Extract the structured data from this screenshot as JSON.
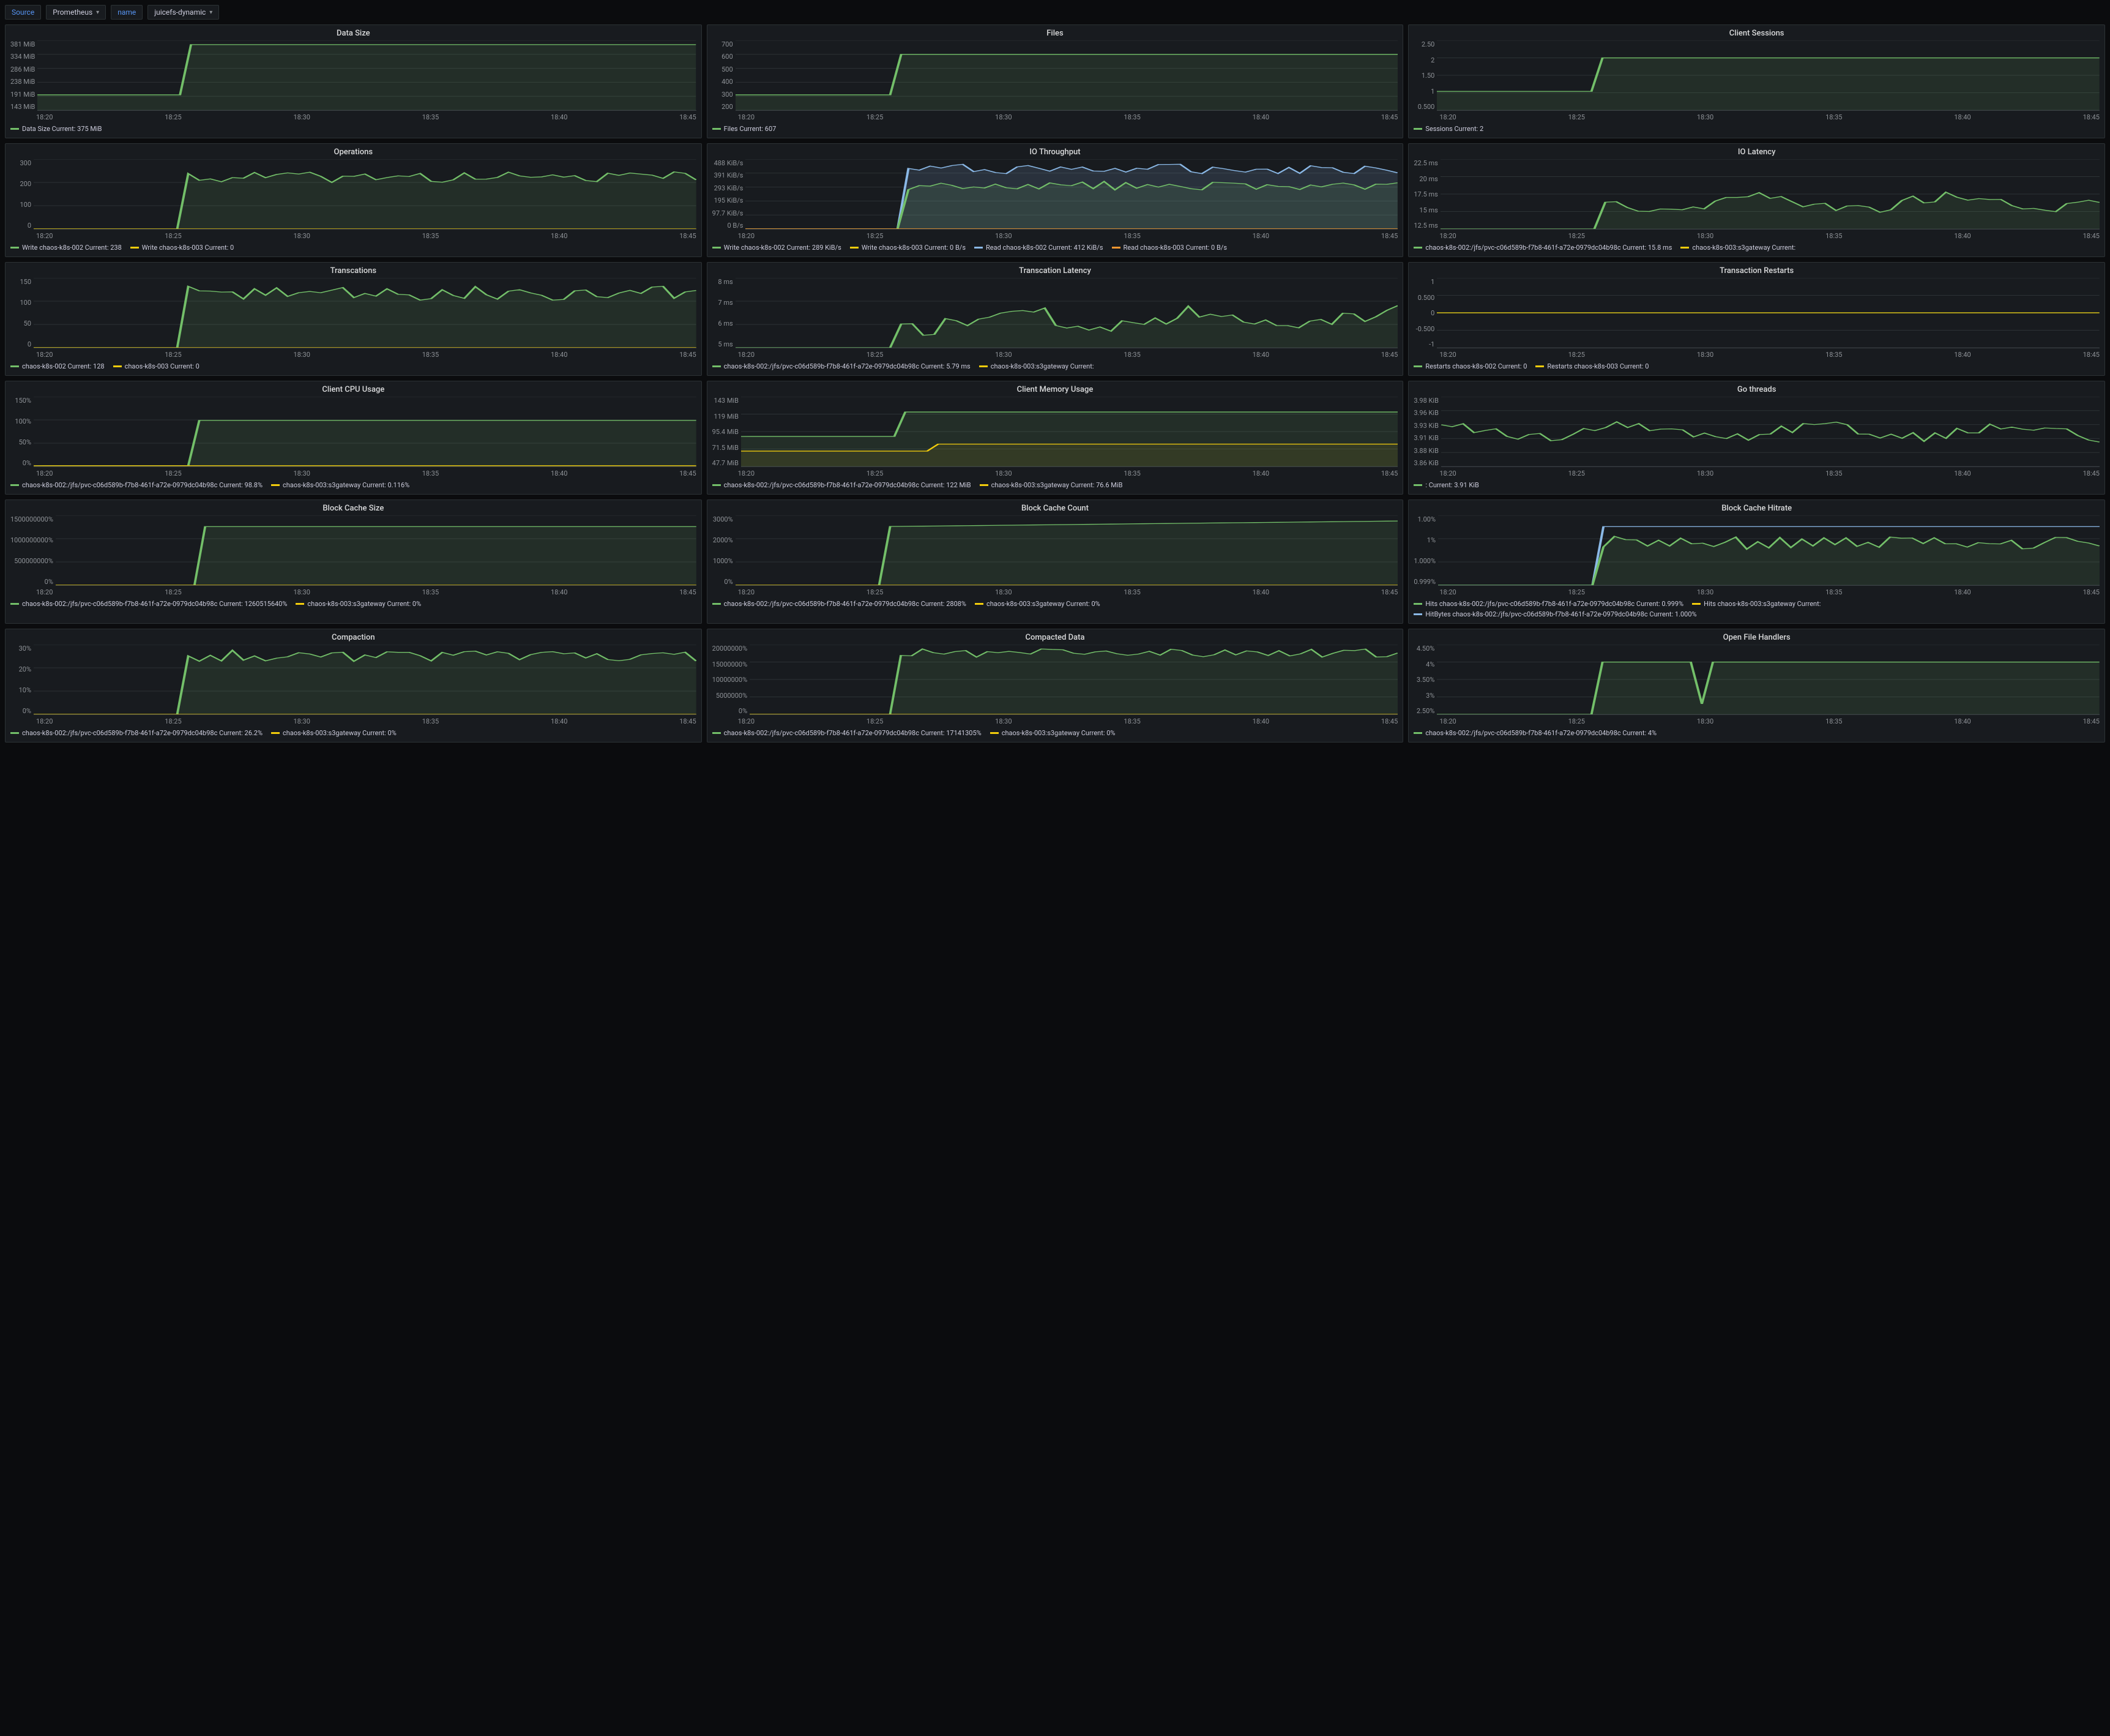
{
  "toolbar": {
    "source_label": "Source",
    "source_value": "Prometheus",
    "name_label": "name",
    "name_value": "juicefs-dynamic"
  },
  "x_ticks": [
    "18:20",
    "18:25",
    "18:30",
    "18:35",
    "18:40",
    "18:45"
  ],
  "colors": {
    "green": "#73bf69",
    "yellow": "#f2cc0c",
    "blue": "#8ab8e6",
    "orange": "#ff9830",
    "fill_green": "rgba(115,191,105,0.12)",
    "fill_blue": "rgba(138,184,230,0.15)",
    "grid": "#2c3235"
  },
  "panels": [
    {
      "title": "Data Size",
      "y_ticks": [
        "381 MiB",
        "334 MiB",
        "286 MiB",
        "238 MiB",
        "191 MiB",
        "143 MiB"
      ],
      "series": [
        {
          "color": "green",
          "fill": true,
          "shape": "step",
          "low": 78,
          "high": 6,
          "step_at": 0.22
        }
      ],
      "legend": [
        {
          "color": "green",
          "label": "Data Size",
          "current": "375 MiB"
        }
      ]
    },
    {
      "title": "Files",
      "y_ticks": [
        "700",
        "600",
        "500",
        "400",
        "300",
        "200"
      ],
      "series": [
        {
          "color": "green",
          "fill": true,
          "shape": "step",
          "low": 78,
          "high": 20,
          "step_at": 0.25
        }
      ],
      "legend": [
        {
          "color": "green",
          "label": "Files",
          "current": "607"
        }
      ]
    },
    {
      "title": "Client Sessions",
      "y_ticks": [
        "2.50",
        "2",
        "1.50",
        "1",
        "0.500"
      ],
      "series": [
        {
          "color": "green",
          "fill": true,
          "shape": "step",
          "low": 73,
          "high": 25,
          "step_at": 0.25
        }
      ],
      "legend": [
        {
          "color": "green",
          "label": "Sessions",
          "current": "2"
        }
      ]
    },
    {
      "title": "Operations",
      "y_ticks": [
        "300",
        "200",
        "100",
        "0"
      ],
      "series": [
        {
          "color": "green",
          "fill": true,
          "shape": "noisy",
          "low": 100,
          "high": 26,
          "step_at": 0.22,
          "noise": 8
        },
        {
          "color": "yellow",
          "fill": false,
          "shape": "flat",
          "level": 100
        }
      ],
      "legend": [
        {
          "color": "green",
          "label": "Write chaos-k8s-002",
          "current": "238"
        },
        {
          "color": "yellow",
          "label": "Write chaos-k8s-003",
          "current": "0"
        }
      ]
    },
    {
      "title": "IO Throughput",
      "y_ticks": [
        "488 KiB/s",
        "391 KiB/s",
        "293 KiB/s",
        "195 KiB/s",
        "97.7 KiB/s",
        "0 B/s"
      ],
      "series": [
        {
          "color": "blue",
          "fill": true,
          "shape": "noisy",
          "low": 100,
          "high": 14,
          "step_at": 0.25,
          "noise": 7
        },
        {
          "color": "green",
          "fill": true,
          "shape": "noisy",
          "low": 100,
          "high": 38,
          "step_at": 0.25,
          "noise": 6
        },
        {
          "color": "yellow",
          "fill": false,
          "shape": "flat",
          "level": 100
        },
        {
          "color": "orange",
          "fill": false,
          "shape": "flat",
          "level": 100
        }
      ],
      "legend": [
        {
          "color": "green",
          "label": "Write chaos-k8s-002",
          "current": "289 KiB/s"
        },
        {
          "color": "yellow",
          "label": "Write chaos-k8s-003",
          "current": "0 B/s"
        },
        {
          "color": "blue",
          "label": "Read chaos-k8s-002",
          "current": "412 KiB/s"
        },
        {
          "color": "orange",
          "label": "Read chaos-k8s-003",
          "current": "0 B/s"
        }
      ]
    },
    {
      "title": "IO Latency",
      "y_ticks": [
        "22.5 ms",
        "20 ms",
        "17.5 ms",
        "15 ms",
        "12.5 ms"
      ],
      "series": [
        {
          "color": "green",
          "fill": true,
          "shape": "wavy",
          "low": 100,
          "high": 45,
          "step_at": 0.24,
          "noise": 16
        }
      ],
      "legend": [
        {
          "color": "green",
          "label": "chaos-k8s-002:/jfs/pvc-c06d589b-f7b8-461f-a72e-0979dc04b98c",
          "current": "15.8 ms"
        },
        {
          "color": "yellow",
          "label": "chaos-k8s-003:s3gateway",
          "current": ""
        }
      ]
    },
    {
      "title": "Transcations",
      "y_ticks": [
        "150",
        "100",
        "50",
        "0"
      ],
      "series": [
        {
          "color": "green",
          "fill": true,
          "shape": "noisy",
          "low": 100,
          "high": 22,
          "step_at": 0.22,
          "noise": 10
        },
        {
          "color": "yellow",
          "fill": false,
          "shape": "flat",
          "level": 100
        }
      ],
      "legend": [
        {
          "color": "green",
          "label": "chaos-k8s-002",
          "current": "128"
        },
        {
          "color": "yellow",
          "label": "chaos-k8s-003",
          "current": "0"
        }
      ]
    },
    {
      "title": "Transcation Latency",
      "y_ticks": [
        "8 ms",
        "7 ms",
        "6 ms",
        "5 ms"
      ],
      "series": [
        {
          "color": "green",
          "fill": true,
          "shape": "wavy",
          "low": 100,
          "high": 40,
          "step_at": 0.24,
          "noise": 22
        }
      ],
      "legend": [
        {
          "color": "green",
          "label": "chaos-k8s-002:/jfs/pvc-c06d589b-f7b8-461f-a72e-0979dc04b98c",
          "current": "5.79 ms"
        },
        {
          "color": "yellow",
          "label": "chaos-k8s-003:s3gateway",
          "current": ""
        }
      ]
    },
    {
      "title": "Transaction Restarts",
      "y_ticks": [
        "1",
        "0.500",
        "0",
        "-0.500",
        "-1"
      ],
      "series": [
        {
          "color": "green",
          "fill": false,
          "shape": "flat",
          "level": 50
        },
        {
          "color": "yellow",
          "fill": false,
          "shape": "flat",
          "level": 50
        }
      ],
      "legend": [
        {
          "color": "green",
          "label": "Restarts chaos-k8s-002",
          "current": "0"
        },
        {
          "color": "yellow",
          "label": "Restarts chaos-k8s-003",
          "current": "0"
        }
      ]
    },
    {
      "title": "Client CPU Usage",
      "y_ticks": [
        "150%",
        "100%",
        "50%",
        "0%"
      ],
      "series": [
        {
          "color": "green",
          "fill": true,
          "shape": "step",
          "low": 99,
          "high": 34,
          "step_at": 0.24
        },
        {
          "color": "yellow",
          "fill": false,
          "shape": "flat",
          "level": 99
        }
      ],
      "legend": [
        {
          "color": "green",
          "label": "chaos-k8s-002:/jfs/pvc-c06d589b-f7b8-461f-a72e-0979dc04b98c",
          "current": "98.8%"
        },
        {
          "color": "yellow",
          "label": "chaos-k8s-003:s3gateway",
          "current": "0.116%"
        }
      ]
    },
    {
      "title": "Client Memory Usage",
      "y_ticks": [
        "143 MiB",
        "119 MiB",
        "95.4 MiB",
        "71.5 MiB",
        "47.7 MiB"
      ],
      "series": [
        {
          "color": "green",
          "fill": true,
          "shape": "step",
          "low": 57,
          "high": 22,
          "step_at": 0.24
        },
        {
          "color": "yellow",
          "fill": true,
          "shape": "step",
          "low": 78,
          "high": 68,
          "step_at": 0.3
        }
      ],
      "legend": [
        {
          "color": "green",
          "label": "chaos-k8s-002:/jfs/pvc-c06d589b-f7b8-461f-a72e-0979dc04b98c",
          "current": "122 MiB"
        },
        {
          "color": "yellow",
          "label": "chaos-k8s-003:s3gateway",
          "current": "76.6 MiB"
        }
      ]
    },
    {
      "title": "Go threads",
      "y_ticks": [
        "3.98 KiB",
        "3.96 KiB",
        "3.93 KiB",
        "3.91 KiB",
        "3.88 KiB",
        "3.86 KiB"
      ],
      "series": [
        {
          "color": "green",
          "fill": false,
          "shape": "wavy",
          "low": 82,
          "high": 38,
          "step_at": 0.0,
          "noise": 14
        }
      ],
      "legend": [
        {
          "color": "green",
          "label": ":",
          "current": "3.91 KiB"
        }
      ]
    },
    {
      "title": "Block Cache Size",
      "y_ticks": [
        "1500000000%",
        "1000000000%",
        "500000000%",
        "0%"
      ],
      "series": [
        {
          "color": "green",
          "fill": true,
          "shape": "step",
          "low": 100,
          "high": 16,
          "step_at": 0.22
        },
        {
          "color": "yellow",
          "fill": false,
          "shape": "flat",
          "level": 100
        }
      ],
      "legend": [
        {
          "color": "green",
          "label": "chaos-k8s-002:/jfs/pvc-c06d589b-f7b8-461f-a72e-0979dc04b98c",
          "current": "1260515640%"
        },
        {
          "color": "yellow",
          "label": "chaos-k8s-003:s3gateway",
          "current": "0%"
        }
      ]
    },
    {
      "title": "Block Cache Count",
      "y_ticks": [
        "3000%",
        "2000%",
        "1000%",
        "0%"
      ],
      "series": [
        {
          "color": "green",
          "fill": true,
          "shape": "ramp",
          "low": 100,
          "high": 8,
          "step_at": 0.22
        },
        {
          "color": "yellow",
          "fill": false,
          "shape": "flat",
          "level": 100
        }
      ],
      "legend": [
        {
          "color": "green",
          "label": "chaos-k8s-002:/jfs/pvc-c06d589b-f7b8-461f-a72e-0979dc04b98c",
          "current": "2808%"
        },
        {
          "color": "yellow",
          "label": "chaos-k8s-003:s3gateway",
          "current": "0%"
        }
      ]
    },
    {
      "title": "Block Cache Hitrate",
      "y_ticks": [
        "1.00%",
        "1%",
        "1.000%",
        "0.999%"
      ],
      "series": [
        {
          "color": "blue",
          "fill": false,
          "shape": "step",
          "low": 100,
          "high": 16,
          "step_at": 0.25
        },
        {
          "color": "green",
          "fill": true,
          "shape": "noisy",
          "low": 100,
          "high": 40,
          "step_at": 0.25,
          "noise": 10
        }
      ],
      "legend": [
        {
          "color": "green",
          "label": "Hits chaos-k8s-002:/jfs/pvc-c06d589b-f7b8-461f-a72e-0979dc04b98c",
          "current": "0.999%"
        },
        {
          "color": "yellow",
          "label": "Hits chaos-k8s-003:s3gateway",
          "current": ""
        },
        {
          "color": "blue",
          "label": "HitBytes chaos-k8s-002:/jfs/pvc-c06d589b-f7b8-461f-a72e-0979dc04b98c",
          "current": "1.000%"
        }
      ]
    },
    {
      "title": "Compaction",
      "y_ticks": [
        "30%",
        "20%",
        "10%",
        "0%"
      ],
      "series": [
        {
          "color": "green",
          "fill": true,
          "shape": "noisy",
          "low": 100,
          "high": 16,
          "step_at": 0.22,
          "noise": 8
        },
        {
          "color": "yellow",
          "fill": false,
          "shape": "flat",
          "level": 100
        }
      ],
      "legend": [
        {
          "color": "green",
          "label": "chaos-k8s-002:/jfs/pvc-c06d589b-f7b8-461f-a72e-0979dc04b98c",
          "current": "26.2%"
        },
        {
          "color": "yellow",
          "label": "chaos-k8s-003:s3gateway",
          "current": "0%"
        }
      ]
    },
    {
      "title": "Compacted Data",
      "y_ticks": [
        "20000000%",
        "15000000%",
        "10000000%",
        "5000000%",
        "0%"
      ],
      "series": [
        {
          "color": "green",
          "fill": true,
          "shape": "noisy",
          "low": 100,
          "high": 12,
          "step_at": 0.22,
          "noise": 6
        },
        {
          "color": "yellow",
          "fill": false,
          "shape": "flat",
          "level": 100
        }
      ],
      "legend": [
        {
          "color": "green",
          "label": "chaos-k8s-002:/jfs/pvc-c06d589b-f7b8-461f-a72e-0979dc04b98c",
          "current": "17141305%"
        },
        {
          "color": "yellow",
          "label": "chaos-k8s-003:s3gateway",
          "current": "0%"
        }
      ]
    },
    {
      "title": "Open File Handlers",
      "y_ticks": [
        "4.50%",
        "4%",
        "3.50%",
        "3%",
        "2.50%"
      ],
      "series": [
        {
          "color": "green",
          "fill": true,
          "shape": "spike",
          "low": 100,
          "high": 25,
          "step_at": 0.25,
          "spike_at": 0.4,
          "spike_h": 85
        }
      ],
      "legend": [
        {
          "color": "green",
          "label": "chaos-k8s-002:/jfs/pvc-c06d589b-f7b8-461f-a72e-0979dc04b98c",
          "current": "4%"
        }
      ]
    }
  ]
}
